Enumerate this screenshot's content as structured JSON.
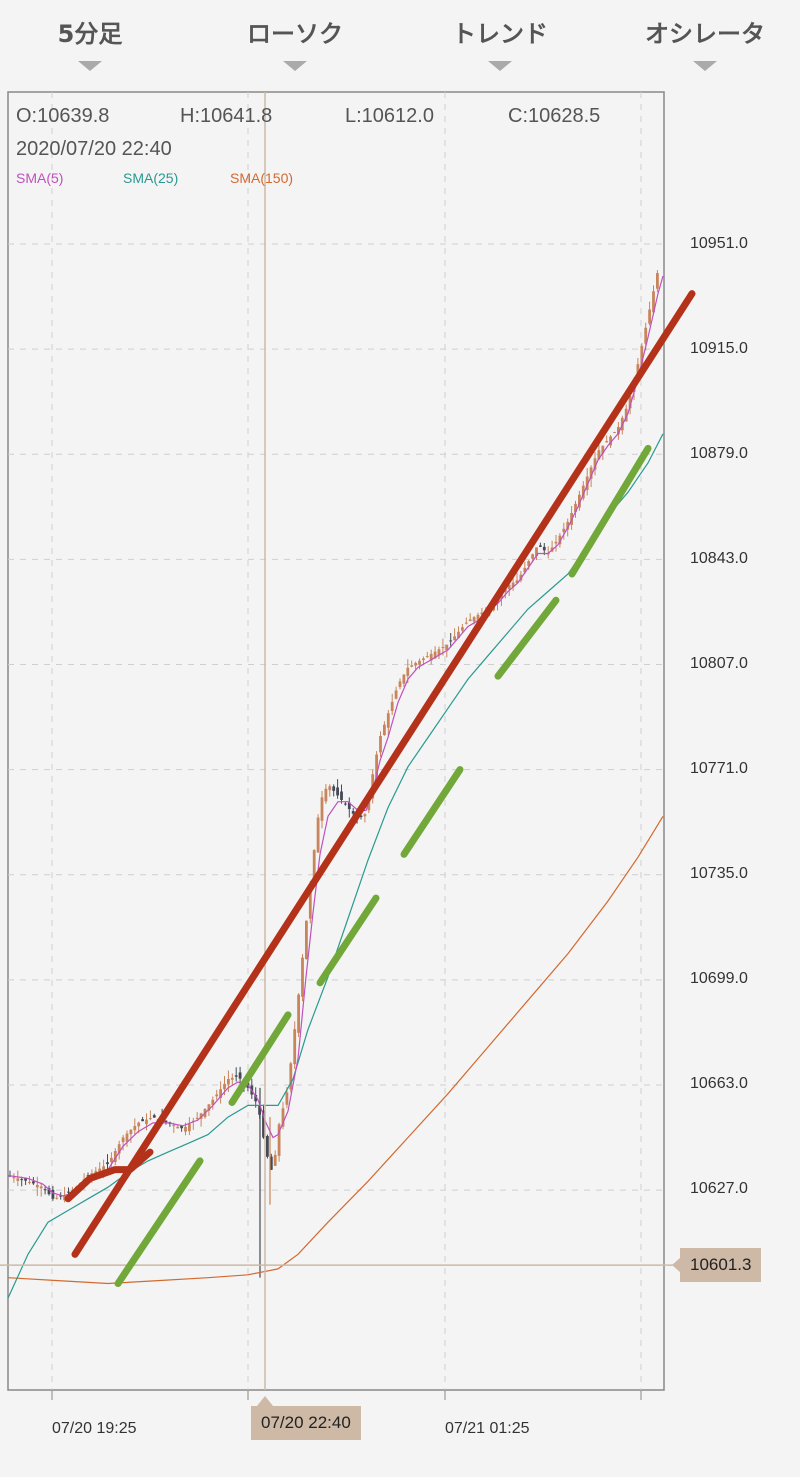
{
  "toolbar": {
    "items": [
      {
        "label": "5分足"
      },
      {
        "label": "ローソク"
      },
      {
        "label": "トレンド"
      },
      {
        "label": "オシレータ"
      }
    ]
  },
  "ohlc": {
    "open": "O:10639.8",
    "high": "H:10641.8",
    "low": "L:10612.0",
    "close": "C:10628.5",
    "datetime": "2020/07/20 22:40"
  },
  "legend": {
    "sma5": "SMA(5)",
    "sma25": "SMA(25)",
    "sma150": "SMA(150)"
  },
  "cursor": {
    "price_label": "10601.3",
    "time_label": "07/20 22:40"
  },
  "colors": {
    "up": "#c8855b",
    "down": "#444a55",
    "sma5": "#c050c0",
    "sma25": "#2a9a90",
    "sma150": "#d26a30",
    "trend_red": "#b43219",
    "trend_green": "#72a83a",
    "cursor": "#cdb9a6"
  },
  "chart_data": {
    "type": "candlestick",
    "y_ticks": [
      "10951.0",
      "10915.0",
      "10879.0",
      "10843.0",
      "10807.0",
      "10771.0",
      "10735.0",
      "10699.0",
      "10663.0",
      "10627.0"
    ],
    "x_ticks": [
      "07/20 19:25",
      "07/21 01:25"
    ],
    "ylim": [
      10570,
      10970
    ],
    "cursor_price": 10601.3,
    "series": [
      {
        "name": "SMA(5)"
      },
      {
        "name": "SMA(25)"
      },
      {
        "name": "SMA(150)"
      }
    ],
    "path_points": {
      "close": [
        [
          0,
          10632
        ],
        [
          20,
          10630
        ],
        [
          35,
          10628
        ],
        [
          45,
          10624
        ],
        [
          55,
          10625
        ],
        [
          65,
          10627
        ],
        [
          80,
          10632
        ],
        [
          100,
          10636
        ],
        [
          115,
          10645
        ],
        [
          130,
          10650
        ],
        [
          145,
          10652
        ],
        [
          160,
          10650
        ],
        [
          175,
          10648
        ],
        [
          190,
          10652
        ],
        [
          205,
          10658
        ],
        [
          220,
          10665
        ],
        [
          230,
          10666
        ],
        [
          240,
          10662
        ],
        [
          250,
          10656
        ],
        [
          258,
          10640
        ],
        [
          265,
          10632
        ],
        [
          270,
          10648
        ],
        [
          280,
          10662
        ],
        [
          290,
          10692
        ],
        [
          298,
          10718
        ],
        [
          305,
          10740
        ],
        [
          312,
          10760
        ],
        [
          320,
          10766
        ],
        [
          330,
          10762
        ],
        [
          340,
          10758
        ],
        [
          350,
          10754
        ],
        [
          358,
          10756
        ],
        [
          365,
          10770
        ],
        [
          372,
          10782
        ],
        [
          380,
          10790
        ],
        [
          390,
          10800
        ],
        [
          400,
          10806
        ],
        [
          410,
          10808
        ],
        [
          420,
          10810
        ],
        [
          430,
          10812
        ],
        [
          440,
          10814
        ],
        [
          450,
          10818
        ],
        [
          460,
          10822
        ],
        [
          470,
          10824
        ],
        [
          480,
          10826
        ],
        [
          490,
          10830
        ],
        [
          500,
          10834
        ],
        [
          510,
          10836
        ],
        [
          520,
          10842
        ],
        [
          530,
          10848
        ],
        [
          540,
          10845
        ],
        [
          550,
          10850
        ],
        [
          560,
          10856
        ],
        [
          570,
          10864
        ],
        [
          580,
          10872
        ],
        [
          590,
          10880
        ],
        [
          600,
          10884
        ],
        [
          610,
          10888
        ],
        [
          620,
          10896
        ],
        [
          630,
          10910
        ],
        [
          640,
          10926
        ],
        [
          650,
          10942
        ],
        [
          655,
          10948
        ]
      ],
      "sma5": [
        [
          0,
          10632
        ],
        [
          20,
          10631
        ],
        [
          35,
          10629
        ],
        [
          45,
          10626
        ],
        [
          55,
          10625
        ],
        [
          65,
          10626
        ],
        [
          80,
          10630
        ],
        [
          100,
          10634
        ],
        [
          115,
          10642
        ],
        [
          130,
          10647
        ],
        [
          145,
          10650
        ],
        [
          160,
          10650
        ],
        [
          175,
          10649
        ],
        [
          190,
          10651
        ],
        [
          205,
          10656
        ],
        [
          220,
          10662
        ],
        [
          230,
          10664
        ],
        [
          240,
          10663
        ],
        [
          250,
          10658
        ],
        [
          258,
          10650
        ],
        [
          265,
          10645
        ],
        [
          270,
          10646
        ],
        [
          280,
          10654
        ],
        [
          290,
          10672
        ],
        [
          298,
          10700
        ],
        [
          305,
          10722
        ],
        [
          312,
          10742
        ],
        [
          320,
          10755
        ],
        [
          330,
          10760
        ],
        [
          340,
          10760
        ],
        [
          350,
          10757
        ],
        [
          358,
          10757
        ],
        [
          365,
          10764
        ],
        [
          372,
          10774
        ],
        [
          380,
          10782
        ],
        [
          390,
          10794
        ],
        [
          400,
          10802
        ],
        [
          410,
          10806
        ],
        [
          420,
          10808
        ],
        [
          430,
          10810
        ],
        [
          440,
          10812
        ],
        [
          450,
          10816
        ],
        [
          460,
          10820
        ],
        [
          470,
          10822
        ],
        [
          480,
          10825
        ],
        [
          490,
          10828
        ],
        [
          500,
          10832
        ],
        [
          510,
          10835
        ],
        [
          520,
          10840
        ],
        [
          530,
          10845
        ],
        [
          540,
          10845
        ],
        [
          550,
          10848
        ],
        [
          560,
          10854
        ],
        [
          570,
          10861
        ],
        [
          580,
          10869
        ],
        [
          590,
          10877
        ],
        [
          600,
          10882
        ],
        [
          610,
          10886
        ],
        [
          620,
          10893
        ],
        [
          630,
          10905
        ],
        [
          640,
          10919
        ],
        [
          650,
          10934
        ],
        [
          655,
          10940
        ]
      ],
      "sma25": [
        [
          0,
          10590
        ],
        [
          20,
          10605
        ],
        [
          40,
          10616
        ],
        [
          60,
          10620
        ],
        [
          80,
          10624
        ],
        [
          100,
          10628
        ],
        [
          120,
          10633
        ],
        [
          140,
          10637
        ],
        [
          160,
          10640
        ],
        [
          180,
          10643
        ],
        [
          200,
          10646
        ],
        [
          220,
          10652
        ],
        [
          240,
          10656
        ],
        [
          255,
          10656
        ],
        [
          270,
          10656
        ],
        [
          285,
          10665
        ],
        [
          300,
          10682
        ],
        [
          320,
          10700
        ],
        [
          340,
          10720
        ],
        [
          360,
          10740
        ],
        [
          380,
          10758
        ],
        [
          400,
          10772
        ],
        [
          420,
          10782
        ],
        [
          440,
          10792
        ],
        [
          460,
          10802
        ],
        [
          480,
          10810
        ],
        [
          500,
          10818
        ],
        [
          520,
          10826
        ],
        [
          540,
          10832
        ],
        [
          560,
          10838
        ],
        [
          580,
          10848
        ],
        [
          600,
          10858
        ],
        [
          620,
          10866
        ],
        [
          640,
          10876
        ],
        [
          655,
          10886
        ]
      ],
      "sma150": [
        [
          0,
          10597
        ],
        [
          50,
          10596
        ],
        [
          100,
          10595
        ],
        [
          150,
          10596
        ],
        [
          200,
          10597
        ],
        [
          240,
          10598
        ],
        [
          270,
          10600
        ],
        [
          290,
          10605
        ],
        [
          320,
          10616
        ],
        [
          360,
          10630
        ],
        [
          400,
          10645
        ],
        [
          440,
          10660
        ],
        [
          480,
          10676
        ],
        [
          520,
          10692
        ],
        [
          560,
          10708
        ],
        [
          600,
          10726
        ],
        [
          630,
          10741
        ],
        [
          655,
          10755
        ]
      ]
    },
    "annotations": {
      "red_line": [
        [
          75,
          10605
        ],
        [
          692,
          10934
        ]
      ],
      "red_curve": [
        [
          68,
          10624
        ],
        [
          90,
          10631
        ],
        [
          115,
          10634
        ],
        [
          130,
          10634
        ],
        [
          150,
          10640
        ]
      ],
      "green_dashes": [
        [
          [
            118,
            10595
          ],
          [
            200,
            10637
          ]
        ],
        [
          [
            232,
            10657
          ],
          [
            288,
            10687
          ]
        ],
        [
          [
            320,
            10698
          ],
          [
            376,
            10727
          ]
        ],
        [
          [
            404,
            10742
          ],
          [
            460,
            10771
          ]
        ],
        [
          [
            498,
            10803
          ],
          [
            556,
            10829
          ]
        ],
        [
          [
            572,
            10838
          ],
          [
            648,
            10881
          ]
        ]
      ]
    }
  }
}
